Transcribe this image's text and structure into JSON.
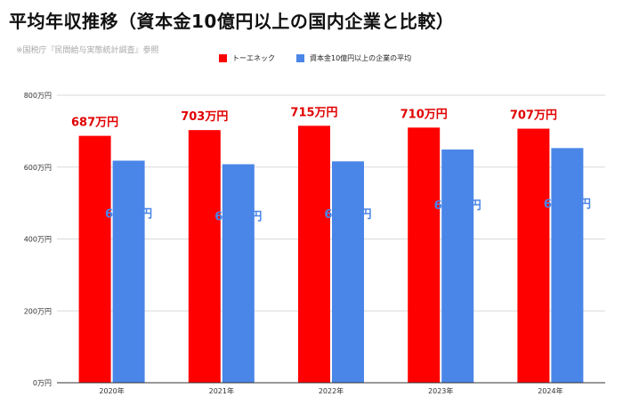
{
  "header": {
    "title": "平均年収推移（資本金10億円以上の国内企業と比較）",
    "source_note": "※国税庁『民間給与実態統計調査』参照"
  },
  "colors": {
    "company": "#ff0000",
    "average": "#4a86e8",
    "gridline": "#d9d9d9",
    "axis": "#333333"
  },
  "chart_data": {
    "type": "bar",
    "categories": [
      "2020年",
      "2021年",
      "2022年",
      "2023年",
      "2024年"
    ],
    "series": [
      {
        "name": "トーエネック",
        "values": [
          687,
          703,
          715,
          710,
          707
        ],
        "labels": [
          "687万円",
          "703万円",
          "715万円",
          "710万円",
          "707万円"
        ]
      },
      {
        "name": "資本金10億円以上の企業の平均",
        "values": [
          618,
          608,
          616,
          649,
          653
        ],
        "labels": [
          "618万円",
          "608万円",
          "616万円",
          "649万円",
          "653万円"
        ]
      }
    ],
    "ylim": [
      0,
      800
    ],
    "yticks": [
      {
        "value": 0,
        "label": "0万円"
      },
      {
        "value": 200,
        "label": "200万円"
      },
      {
        "value": 400,
        "label": "400万円"
      },
      {
        "value": 600,
        "label": "600万円"
      },
      {
        "value": 800,
        "label": "800万円"
      }
    ],
    "grid": true,
    "legend_position": "top"
  }
}
